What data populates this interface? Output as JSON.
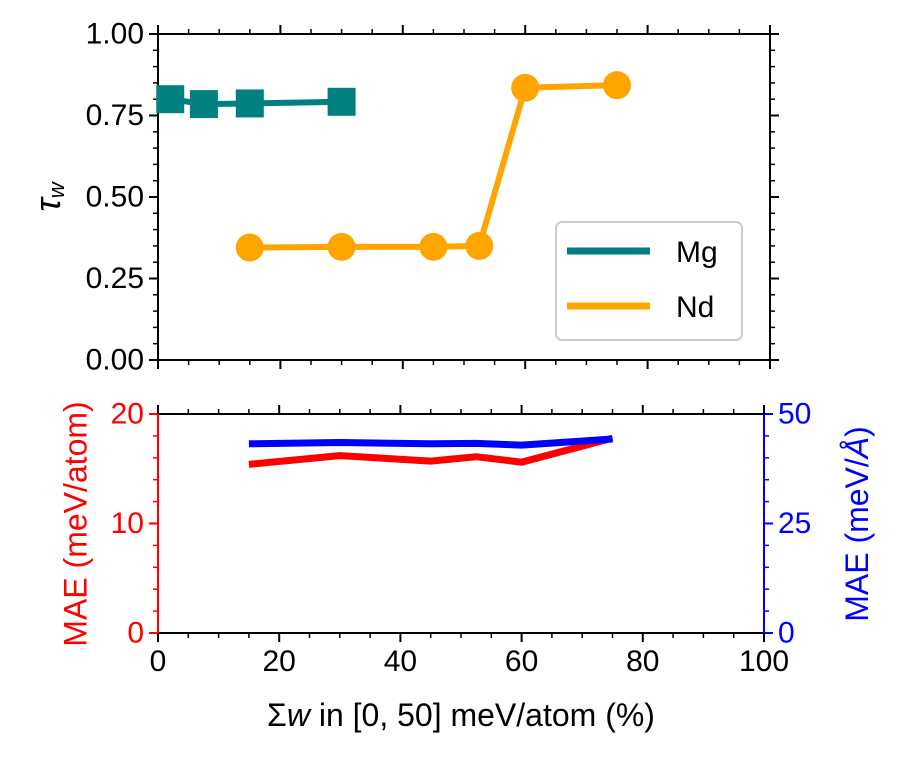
{
  "chart_data": [
    {
      "type": "line",
      "ylabel": "τ",
      "ylabel_sub": "w",
      "xlim": [
        0,
        100
      ],
      "ylim": [
        0,
        1
      ],
      "yticks": [
        "0.00",
        "0.25",
        "0.50",
        "0.75",
        "1.00"
      ],
      "ytick_values": [
        0,
        0.25,
        0.5,
        0.75,
        1.0
      ],
      "legend_position": "center-right",
      "series": [
        {
          "name": "Mg",
          "color": "#008080",
          "marker": "square",
          "x": [
            2,
            7.5,
            15,
            30
          ],
          "y": [
            0.8,
            0.785,
            0.787,
            0.792
          ]
        },
        {
          "name": "Nd",
          "color": "#ffa500",
          "marker": "circle",
          "x": [
            15,
            30,
            45,
            52.5,
            60,
            75
          ],
          "y": [
            0.345,
            0.347,
            0.347,
            0.35,
            0.835,
            0.843
          ]
        }
      ]
    },
    {
      "type": "line",
      "xlabel_prefix": "Σ",
      "xlabel_var": "w",
      "xlabel_rest": " in [0, 50] meV/atom (%)",
      "ylabel_left": "MAE (meV/atom)",
      "ylabel_right_prefix": "MAE (meV/",
      "ylabel_right_unit": "Å",
      "ylabel_right_suffix": ")",
      "xlim": [
        0,
        100
      ],
      "ylim_left": [
        0,
        20
      ],
      "ylim_right": [
        0,
        50
      ],
      "xticks": [
        "0",
        "20",
        "40",
        "60",
        "80",
        "100"
      ],
      "xtick_values": [
        0,
        20,
        40,
        60,
        80,
        100
      ],
      "yticks_left": [
        "0",
        "10",
        "20"
      ],
      "ytick_values_left": [
        0,
        10,
        20
      ],
      "yticks_right": [
        "0",
        "25",
        "50"
      ],
      "ytick_values_right": [
        0,
        25,
        50
      ],
      "series": [
        {
          "color": "#ff0000",
          "axis": "left",
          "x": [
            15,
            30,
            45,
            52.5,
            60,
            75
          ],
          "y": [
            15.4,
            16.2,
            15.7,
            16.1,
            15.6,
            17.8
          ]
        },
        {
          "color": "#0000ff",
          "axis": "right",
          "x": [
            15,
            30,
            45,
            52.5,
            60,
            75
          ],
          "y": [
            43.2,
            43.5,
            43.2,
            43.3,
            42.9,
            44.3
          ]
        }
      ]
    }
  ]
}
